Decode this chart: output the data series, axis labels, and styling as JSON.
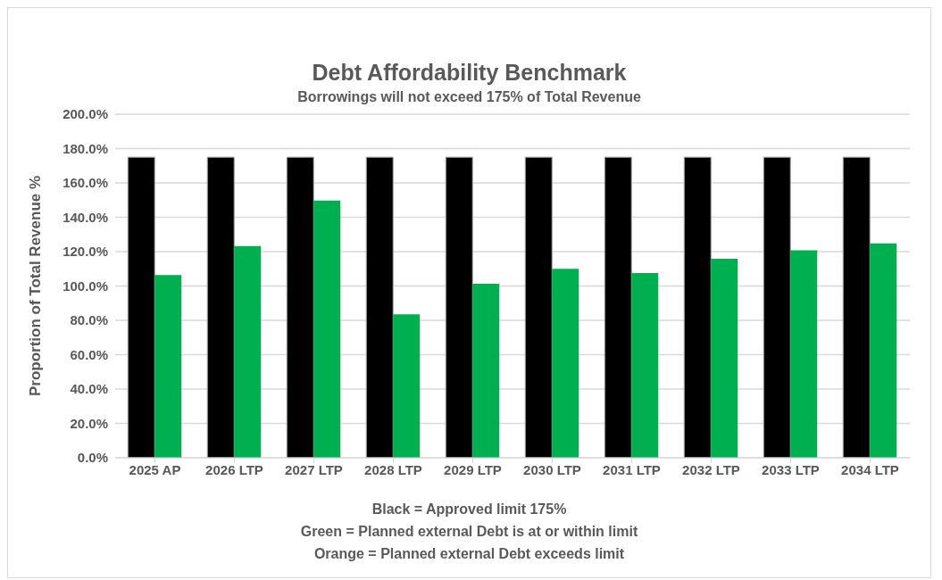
{
  "chart_data": {
    "type": "bar",
    "title": "Debt Affordability Benchmark",
    "subtitle": "Borrowings will not exceed 175% of Total Revenue",
    "ylabel": "Proportion of Total Revenue %",
    "categories": [
      "2025 AP",
      "2026 LTP",
      "2027 LTP",
      "2028 LTP",
      "2029 LTP",
      "2030 LTP",
      "2031 LTP",
      "2032 LTP",
      "2033 LTP",
      "2034 LTP"
    ],
    "series": [
      {
        "color": "#000000",
        "values": [
          175,
          175,
          175,
          175,
          175,
          175,
          175,
          175,
          175,
          175
        ]
      },
      {
        "color": "#00b050",
        "values": [
          106.3,
          123.2,
          149.8,
          83.5,
          101.3,
          110,
          107.5,
          115.8,
          120.8,
          124.8
        ]
      }
    ],
    "ylim": [
      0,
      200
    ],
    "yticks": [
      {
        "value": 0,
        "label": "0.0%"
      },
      {
        "value": 20,
        "label": "20.0%"
      },
      {
        "value": 40,
        "label": "40.0%"
      },
      {
        "value": 60,
        "label": "60.0%"
      },
      {
        "value": 80,
        "label": "80.0%"
      },
      {
        "value": 100,
        "label": "100.0%"
      },
      {
        "value": 120,
        "label": "120.0%"
      },
      {
        "value": 140,
        "label": "140.0%"
      },
      {
        "value": 160,
        "label": "160.0%"
      },
      {
        "value": 180,
        "label": "180.0%"
      },
      {
        "value": 200,
        "label": "200.0%"
      }
    ],
    "grid": "y",
    "annotations": [
      "Black = Approved limit 175%",
      "Green = Planned external Debt is at or within limit",
      "Orange = Planned external Debt exceeds limit"
    ]
  }
}
